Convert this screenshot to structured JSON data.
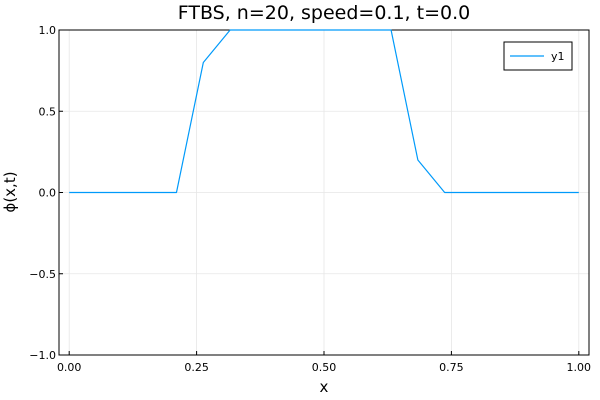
{
  "chart_data": {
    "type": "line",
    "title": "FTBS, n=20, speed=0.1, t=0.0",
    "xlabel": "x",
    "ylabel": "ϕ(x,t)",
    "xlim": [
      -0.02,
      1.02
    ],
    "ylim": [
      -1.0,
      1.0
    ],
    "xticks": [
      0.0,
      0.25,
      0.5,
      0.75,
      1.0
    ],
    "xtick_labels": [
      "0.00",
      "0.25",
      "0.50",
      "0.75",
      "1.00"
    ],
    "yticks": [
      -1.0,
      -0.5,
      0.0,
      0.5,
      1.0
    ],
    "ytick_labels": [
      "−1.0",
      "−0.5",
      "0.0",
      "0.5",
      "1.0"
    ],
    "grid": true,
    "legend": "top-right",
    "series": [
      {
        "name": "y1",
        "color": "#009AFA",
        "x": [
          0.0,
          0.0526,
          0.1053,
          0.1579,
          0.2105,
          0.2632,
          0.3158,
          0.3684,
          0.4211,
          0.4737,
          0.5263,
          0.5789,
          0.6316,
          0.6842,
          0.7368,
          0.7895,
          0.8421,
          0.8947,
          0.9474,
          1.0
        ],
        "y": [
          0.0,
          0.0,
          0.0,
          0.0,
          0.0,
          0.8,
          1.0,
          1.0,
          1.0,
          1.0,
          1.0,
          1.0,
          1.0,
          0.2,
          0.0,
          0.0,
          0.0,
          0.0,
          0.0,
          0.0
        ]
      }
    ]
  }
}
